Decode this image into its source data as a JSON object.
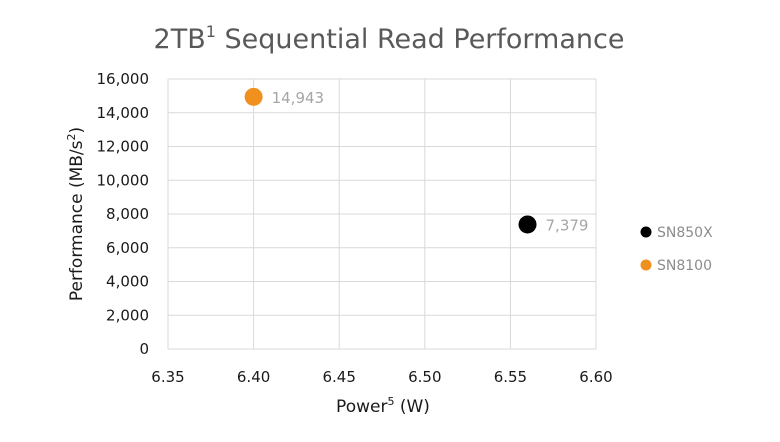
{
  "chart_data": {
    "type": "scatter",
    "title": "2TB",
    "title_superscript": "1",
    "title_rest": " Sequential Read Performance",
    "xlabel": "Power",
    "xlabel_superscript": "5",
    "xlabel_unit": " (W)",
    "ylabel": "Performance (MB/s",
    "ylabel_superscript": "2",
    "ylabel_end": ")",
    "xlim": [
      6.35,
      6.6
    ],
    "ylim": [
      0,
      16000
    ],
    "x_ticks": [
      "6.35",
      "6.40",
      "6.45",
      "6.50",
      "6.55",
      "6.60"
    ],
    "y_ticks": [
      "0",
      "2,000",
      "4,000",
      "6,000",
      "8,000",
      "10,000",
      "12,000",
      "14,000",
      "16,000"
    ],
    "grid": true,
    "legend_position": "right",
    "series": [
      {
        "name": "SN850X",
        "color": "#000000",
        "x": 6.56,
        "y": 7379,
        "label": "7,379"
      },
      {
        "name": "SN8100",
        "color": "#f0901e",
        "x": 6.4,
        "y": 14943,
        "label": "14,943"
      }
    ]
  }
}
